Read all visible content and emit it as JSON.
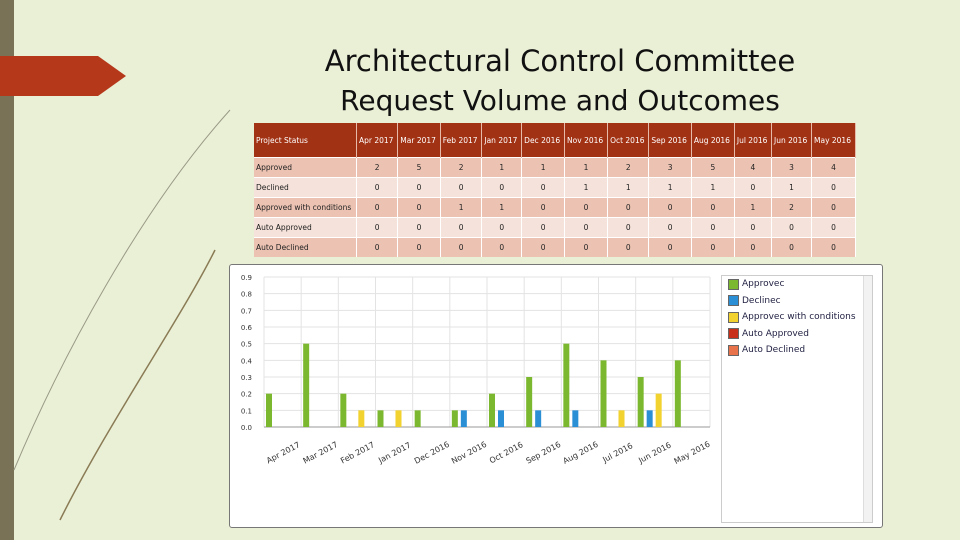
{
  "slide": {
    "title_line1": "Architectural Control Committee",
    "title_line2": "Request Volume and Outcomes"
  },
  "table": {
    "header_label": "Project Status",
    "columns": [
      "Apr 2017",
      "Mar 2017",
      "Feb 2017",
      "Jan 2017",
      "Dec 2016",
      "Nov 2016",
      "Oct 2016",
      "Sep 2016",
      "Aug 2016",
      "Jul 2016",
      "Jun 2016",
      "May 2016"
    ],
    "rows": [
      {
        "label": "Approved",
        "values": [
          "2",
          "5",
          "2",
          "1",
          "1",
          "1",
          "2",
          "3",
          "5",
          "4",
          "3",
          "4"
        ]
      },
      {
        "label": "Declined",
        "values": [
          "0",
          "0",
          "0",
          "0",
          "0",
          "1",
          "1",
          "1",
          "1",
          "0",
          "1",
          "0"
        ]
      },
      {
        "label": "Approved with conditions",
        "values": [
          "0",
          "0",
          "1",
          "1",
          "0",
          "0",
          "0",
          "0",
          "0",
          "1",
          "2",
          "0"
        ]
      },
      {
        "label": "Auto Approved",
        "values": [
          "0",
          "0",
          "0",
          "0",
          "0",
          "0",
          "0",
          "0",
          "0",
          "0",
          "0",
          "0"
        ]
      },
      {
        "label": "Auto Declined",
        "values": [
          "0",
          "0",
          "0",
          "0",
          "0",
          "0",
          "0",
          "0",
          "0",
          "0",
          "0",
          "0"
        ]
      }
    ]
  },
  "chart_data": {
    "type": "bar",
    "categories": [
      "Apr 2017",
      "Mar 2017",
      "Feb 2017",
      "Jan 2017",
      "Dec 2016",
      "Nov 2016",
      "Oct 2016",
      "Sep 2016",
      "Aug 2016",
      "Jul 2016",
      "Jun 2016",
      "May 2016"
    ],
    "series": [
      {
        "name": "Approvec",
        "color": "#7cb82f",
        "values": [
          0.2,
          0.5,
          0.2,
          0.1,
          0.1,
          0.1,
          0.2,
          0.3,
          0.5,
          0.4,
          0.3,
          0.4
        ]
      },
      {
        "name": "Declinec",
        "color": "#2b8fd6",
        "values": [
          0,
          0,
          0,
          0,
          0,
          0.1,
          0.1,
          0.1,
          0.1,
          0,
          0.1,
          0
        ]
      },
      {
        "name": "Approvec with conditions",
        "color": "#f2d22e",
        "values": [
          0,
          0,
          0.1,
          0.1,
          0,
          0,
          0,
          0,
          0,
          0.1,
          0.2,
          0
        ]
      },
      {
        "name": "Auto Approved",
        "color": "#c9301c",
        "values": [
          0,
          0,
          0,
          0,
          0,
          0,
          0,
          0,
          0,
          0,
          0,
          0
        ]
      },
      {
        "name": "Auto Declined",
        "color": "#e8734a",
        "values": [
          0,
          0,
          0,
          0,
          0,
          0,
          0,
          0,
          0,
          0,
          0,
          0
        ]
      }
    ],
    "y_ticks": [
      "0.9",
      "0.8",
      "0.7",
      "0.6",
      "0.5",
      "0.4",
      "0.3",
      "0.2",
      "0.1",
      "0.0"
    ],
    "x_tick_labels": [
      "Apr 2017",
      "Mar 2017",
      "Feb 2017",
      "Jan 2017",
      "Dec 2016",
      "Nov 2016",
      "Oct 2016",
      "Sep 2016",
      "Aug 2016",
      "Jul 2016",
      "Jun 2016",
      "May 2016"
    ],
    "ylim": [
      0,
      0.9
    ],
    "grid": true,
    "legend_position": "right"
  }
}
